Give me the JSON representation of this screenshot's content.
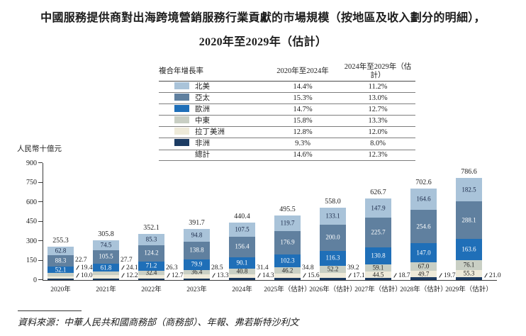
{
  "title": {
    "line1": "中國服務提供商對出海跨境營銷服務行業貢獻的市場規模（按地區及收入劃分的明細），",
    "line2": "2020年至2029年（估計）"
  },
  "legend_table": {
    "header": [
      "複合年增長率",
      "2020年至2024年",
      "2024年至2029年（估計）"
    ],
    "rows": [
      {
        "label": "北美",
        "color": "#a9c3d9",
        "cagr_2020_2024": "14.4%",
        "cagr_2024_2029": "11.2%"
      },
      {
        "label": "亞太",
        "color": "#60809f",
        "cagr_2020_2024": "15.3%",
        "cagr_2024_2029": "13.0%"
      },
      {
        "label": "歐洲",
        "color": "#1f6fb8",
        "cagr_2020_2024": "14.7%",
        "cagr_2024_2029": "12.7%"
      },
      {
        "label": "中東",
        "color": "#c9cfc4",
        "cagr_2020_2024": "15.8%",
        "cagr_2024_2029": "13.3%"
      },
      {
        "label": "拉丁美洲",
        "color": "#eeead9",
        "cagr_2020_2024": "12.8%",
        "cagr_2024_2029": "12.0%"
      },
      {
        "label": "非洲",
        "color": "#1c3c63",
        "cagr_2020_2024": "9.3%",
        "cagr_2024_2029": "8.0%"
      },
      {
        "label": "總計",
        "color": null,
        "cagr_2020_2024": "14.6%",
        "cagr_2024_2029": "12.3%"
      }
    ]
  },
  "chart_data": {
    "type": "bar",
    "stacked": true,
    "ylabel": "人民幣十億元",
    "ylim": [
      0,
      900
    ],
    "yticks": [
      0,
      150,
      300,
      450,
      600,
      750,
      900
    ],
    "categories": [
      "2020年",
      "2021年",
      "2022年",
      "2023年",
      "2024年",
      "2025年（估計）",
      "2026年（估計）",
      "2027年（估計）",
      "2028年（估計）",
      "2029年（估計）"
    ],
    "series": [
      {
        "name": "北美",
        "color": "#a9c3d9",
        "label_color": "#1b2a49",
        "label_inside_from_index": 0,
        "values": [
          62.8,
          74.5,
          85.3,
          94.8,
          107.5,
          119.7,
          133.1,
          147.9,
          164.6,
          182.5
        ]
      },
      {
        "name": "亞太",
        "color": "#60809f",
        "label_color": "#ffffff",
        "label_inside_from_index": 0,
        "values": [
          88.3,
          105.5,
          124.2,
          138.8,
          156.4,
          176.9,
          200.0,
          225.7,
          254.6,
          288.1
        ]
      },
      {
        "name": "歐洲",
        "color": "#1f6fb8",
        "label_color": "#ffffff",
        "label_inside_from_index": 0,
        "values": [
          52.1,
          61.8,
          71.2,
          79.9,
          90.1,
          102.3,
          116.3,
          130.8,
          147.0,
          163.6
        ]
      },
      {
        "name": "中東",
        "color": "#c9cfc4",
        "label_color": "#222222",
        "label_inside_from_index": 2,
        "values": [
          22.7,
          27.7,
          32.4,
          36.4,
          40.8,
          46.2,
          52.2,
          59.1,
          67.0,
          76.1
        ]
      },
      {
        "name": "拉丁美洲",
        "color": "#eeead9",
        "label_color": "#222222",
        "label_inside_from_index": 7,
        "values": [
          19.4,
          24.1,
          26.3,
          28.5,
          31.4,
          34.8,
          39.2,
          44.5,
          49.7,
          55.3
        ]
      },
      {
        "name": "非洲",
        "color": "#1c3c63",
        "label_color": "#222222",
        "label_inside_from_index": 99,
        "values": [
          10.0,
          12.2,
          12.7,
          13.3,
          14.3,
          15.6,
          17.1,
          18.7,
          19.7,
          21.0
        ]
      }
    ],
    "totals": [
      255.3,
      305.8,
      352.1,
      391.7,
      440.4,
      495.5,
      558.0,
      626.7,
      702.6,
      786.6
    ]
  },
  "source": "資料來源：中華人民共和國商務部（商務部）、年報、弗若斯特沙利文"
}
